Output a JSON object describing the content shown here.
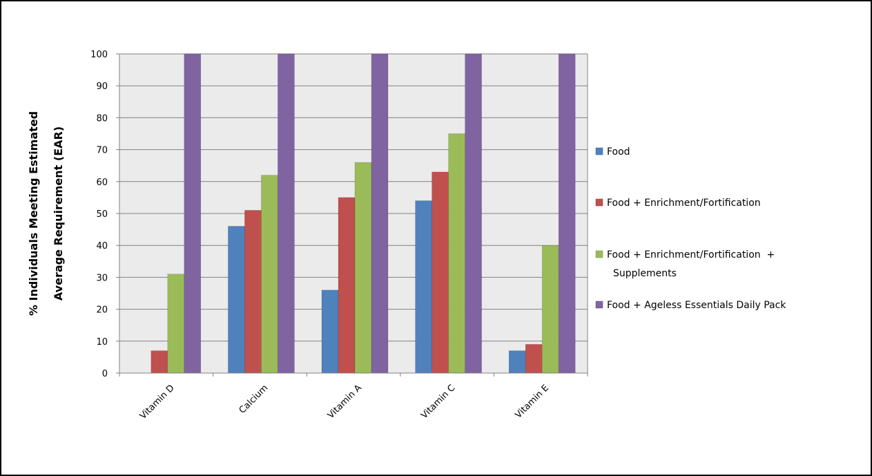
{
  "chart_data": {
    "type": "bar",
    "title": "",
    "xlabel": "",
    "ylabel_lines": [
      "% Individuals Meeting Estimated",
      "Average Requirement (EAR)"
    ],
    "ylim": [
      0,
      100
    ],
    "yticks": [
      0,
      10,
      20,
      30,
      40,
      50,
      60,
      70,
      80,
      90,
      100
    ],
    "grid": true,
    "legend_position": "right",
    "categories": [
      "Vitamin D",
      "Calcium",
      "Vitamin A",
      "Vitamin C",
      "Vitamin E"
    ],
    "series": [
      {
        "name": "Food",
        "color": "#4f81bd",
        "values": [
          0,
          46,
          26,
          54,
          7
        ]
      },
      {
        "name": "Food + Enrichment/Fortification",
        "color": "#c0504d",
        "values": [
          7,
          51,
          55,
          63,
          9
        ]
      },
      {
        "name_lines": [
          "Food + Enrichment/Fortification  +",
          "Supplements"
        ],
        "color": "#9bbb59",
        "values": [
          31,
          62,
          66,
          75,
          40
        ]
      },
      {
        "name": "Food + Ageless Essentials Daily Pack",
        "color": "#8064a2",
        "values": [
          100,
          100,
          100,
          100,
          100
        ]
      }
    ],
    "plot_background": "#ebebeb",
    "gridline_color": "#808080"
  }
}
